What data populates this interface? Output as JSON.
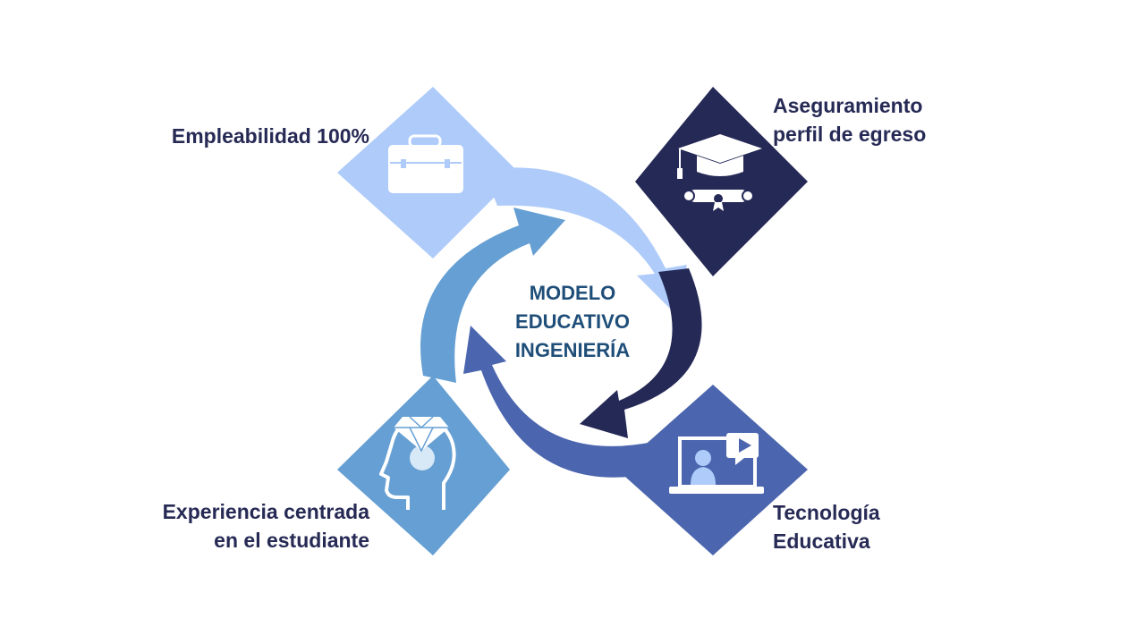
{
  "center": {
    "line1": "MODELO",
    "line2": "EDUCATIVO",
    "line3": "INGENIERÍA"
  },
  "items": {
    "employability": {
      "line1": "Empleabilidad 100%",
      "icon": "briefcase-icon",
      "color": "#aecbfa"
    },
    "graduate_profile": {
      "line1": "Aseguramiento",
      "line2": "perfil de egreso",
      "icon": "graduation-cap-icon",
      "color": "#252956"
    },
    "technology": {
      "line1": "Tecnología",
      "line2": "Educativa",
      "icon": "online-class-icon",
      "color": "#4b66ae"
    },
    "student_experience": {
      "line1": "Experiencia centrada",
      "line2": "en el estudiante",
      "icon": "mind-diamond-icon",
      "color": "#659fd3"
    }
  },
  "colors": {
    "light_blue": "#aecbfa",
    "navy": "#252956",
    "royal_blue": "#4b66ae",
    "sky_blue": "#659fd3",
    "text_dark": "#262a55",
    "center_text": "#1f4e79"
  }
}
